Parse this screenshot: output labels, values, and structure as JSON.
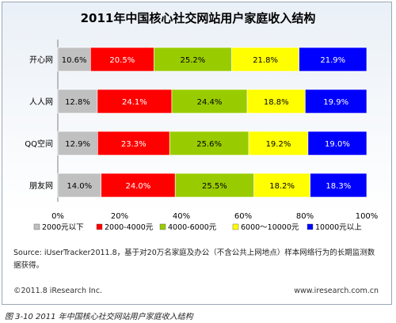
{
  "chart_data": {
    "type": "bar",
    "stacked": true,
    "orientation": "horizontal",
    "title": "2011年中国核心社交网站用户家庭收入结构",
    "categories": [
      "开心网",
      "人人网",
      "QQ空间",
      "朋友网"
    ],
    "series": [
      {
        "name": "2000元以下",
        "color": "#c0c0c0",
        "values": [
          10.6,
          12.8,
          12.9,
          14.0
        ]
      },
      {
        "name": "2000-4000元",
        "color": "#ff0000",
        "values": [
          20.5,
          24.1,
          23.3,
          24.0
        ]
      },
      {
        "name": "4000-6000元",
        "color": "#99cc00",
        "values": [
          25.2,
          24.4,
          25.6,
          25.5
        ]
      },
      {
        "name": "6000～10000元",
        "color": "#ffff00",
        "values": [
          21.8,
          18.8,
          19.2,
          18.2
        ]
      },
      {
        "name": "10000元以上",
        "color": "#0000ff",
        "values": [
          21.9,
          19.9,
          19.0,
          18.3
        ]
      }
    ],
    "xlim": [
      0,
      100
    ],
    "x_ticks": [
      "0%",
      "20%",
      "40%",
      "60%",
      "80%",
      "100%"
    ],
    "grid": false,
    "legend": "bottom"
  },
  "source": "Source: iUserTracker2011.8，基于对20万名家庭及办公（不含公共上网地点）样本网络行为的长期监测数据获得。",
  "footer": {
    "copyright": "©2011.8 iResearch Inc.",
    "site": "www.iresearch.com.cn"
  },
  "caption": "图 3-10 2011 年中国核心社交网站用户家庭收入结构"
}
